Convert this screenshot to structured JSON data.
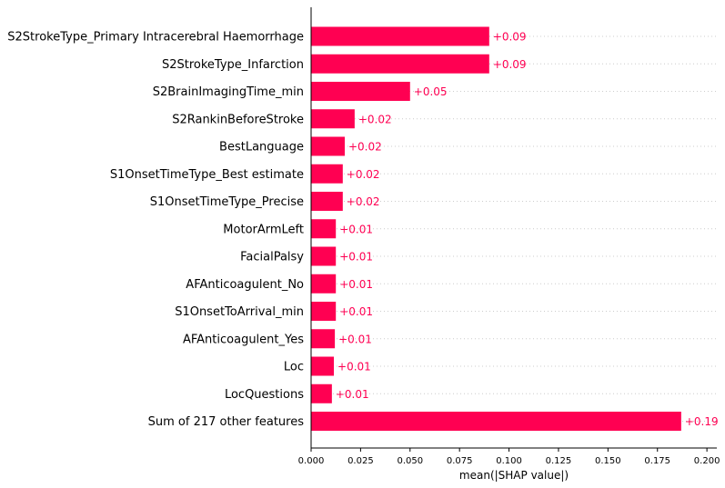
{
  "chart_data": {
    "type": "bar",
    "orientation": "horizontal",
    "categories": [
      "S2StrokeType_Primary Intracerebral Haemorrhage",
      "S2StrokeType_Infarction",
      "S2BrainImagingTime_min",
      "S2RankinBeforeStroke",
      "BestLanguage",
      "S1OnsetTimeType_Best estimate",
      "S1OnsetTimeType_Precise",
      "MotorArmLeft",
      "FacialPalsy",
      "AFAnticoagulent_No",
      "S1OnsetToArrival_min",
      "AFAnticoagulent_Yes",
      "Loc",
      "LocQuestions",
      "Sum of 217 other features"
    ],
    "values": [
      0.09,
      0.09,
      0.05,
      0.022,
      0.017,
      0.016,
      0.016,
      0.0125,
      0.0125,
      0.0125,
      0.0125,
      0.012,
      0.0115,
      0.0105,
      0.187
    ],
    "data_labels": [
      "+0.09",
      "+0.09",
      "+0.05",
      "+0.02",
      "+0.02",
      "+0.02",
      "+0.02",
      "+0.01",
      "+0.01",
      "+0.01",
      "+0.01",
      "+0.01",
      "+0.01",
      "+0.01",
      "+0.19"
    ],
    "xlabel": "mean(|SHAP value|)",
    "ylabel": "",
    "xlim": [
      0,
      0.205
    ],
    "xticks": [
      "0.000",
      "0.025",
      "0.050",
      "0.075",
      "0.100",
      "0.125",
      "0.150",
      "0.175",
      "0.200"
    ],
    "grid": "horizontal dotted row guides",
    "legend": "none",
    "bar_color": "#ff0052",
    "label_color": "#ff0052"
  }
}
